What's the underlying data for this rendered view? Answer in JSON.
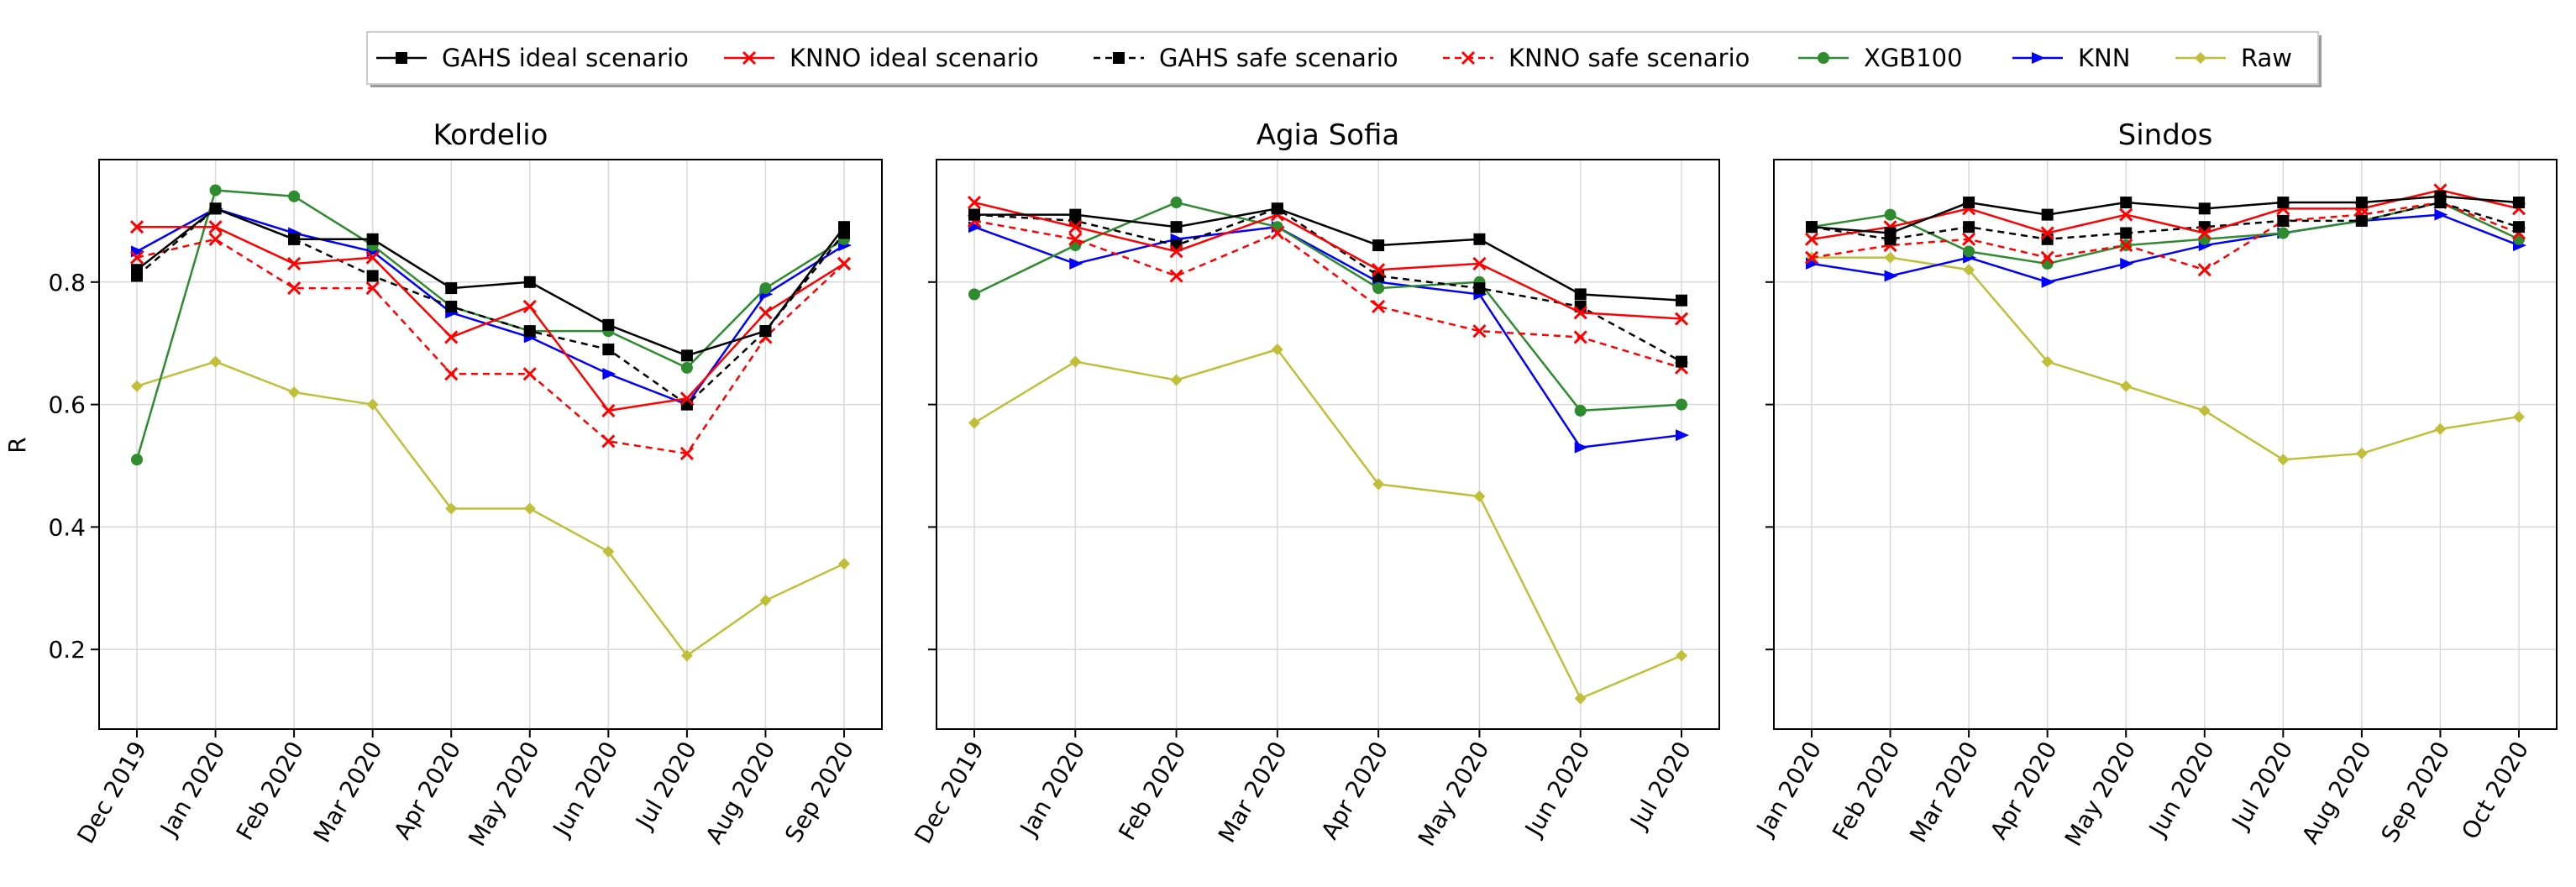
{
  "chart_data": {
    "type": "line",
    "ylabel": "R",
    "ylim": [
      0.07,
      1.0
    ],
    "yticks": [
      0.2,
      0.4,
      0.6,
      0.8
    ],
    "grid": true,
    "legend_position": "top-center",
    "legend": [
      {
        "key": "gahs_ideal",
        "label": "GAHS ideal scenario",
        "color": "#000000",
        "dash": false,
        "marker": "square"
      },
      {
        "key": "knno_ideal",
        "label": "KNNO ideal scenario",
        "color": "#ff0000",
        "dash": false,
        "marker": "x"
      },
      {
        "key": "gahs_safe",
        "label": "GAHS safe scenario",
        "color": "#000000",
        "dash": true,
        "marker": "square"
      },
      {
        "key": "knno_safe",
        "label": "KNNO safe scenario",
        "color": "#ff0000",
        "dash": true,
        "marker": "x"
      },
      {
        "key": "xgb100",
        "label": "XGB100",
        "color": "#2e8b2e",
        "dash": false,
        "marker": "circle"
      },
      {
        "key": "knn",
        "label": "KNN",
        "color": "#0000ff",
        "dash": false,
        "marker": "triangle-right"
      },
      {
        "key": "raw",
        "label": "Raw",
        "color": "#bfbf3a",
        "dash": false,
        "marker": "diamond"
      }
    ],
    "panels": [
      {
        "title": "Kordelio",
        "categories": [
          "Dec 2019",
          "Jan 2020",
          "Feb 2020",
          "Mar 2020",
          "Apr 2020",
          "May 2020",
          "Jun 2020",
          "Jul 2020",
          "Aug 2020",
          "Sep 2020"
        ],
        "series": {
          "gahs_ideal": [
            0.82,
            0.92,
            0.87,
            0.87,
            0.79,
            0.8,
            0.73,
            0.68,
            0.72,
            0.89
          ],
          "knno_ideal": [
            0.89,
            0.89,
            0.83,
            0.84,
            0.71,
            0.76,
            0.59,
            0.61,
            0.75,
            0.83
          ],
          "gahs_safe": [
            0.81,
            0.92,
            0.87,
            0.81,
            0.76,
            0.72,
            0.69,
            0.6,
            0.72,
            0.88
          ],
          "knno_safe": [
            0.84,
            0.87,
            0.79,
            0.79,
            0.65,
            0.65,
            0.54,
            0.52,
            0.71,
            0.83
          ],
          "xgb100": [
            0.51,
            0.95,
            0.94,
            0.86,
            0.76,
            0.72,
            0.72,
            0.66,
            0.79,
            0.87
          ],
          "knn": [
            0.85,
            0.92,
            0.88,
            0.85,
            0.75,
            0.71,
            0.65,
            0.6,
            0.78,
            0.86
          ],
          "raw": [
            0.63,
            0.67,
            0.62,
            0.6,
            0.43,
            0.43,
            0.36,
            0.19,
            0.28,
            0.34
          ]
        }
      },
      {
        "title": "Agia Sofia",
        "categories": [
          "Dec 2019",
          "Jan 2020",
          "Feb 2020",
          "Mar 2020",
          "Apr 2020",
          "May 2020",
          "Jun 2020",
          "Jul 2020"
        ],
        "series": {
          "gahs_ideal": [
            0.91,
            0.91,
            0.89,
            0.92,
            0.86,
            0.87,
            0.78,
            0.77
          ],
          "knno_ideal": [
            0.93,
            0.89,
            0.85,
            0.91,
            0.82,
            0.83,
            0.75,
            0.74
          ],
          "gahs_safe": [
            0.91,
            0.9,
            0.86,
            0.92,
            0.81,
            0.79,
            0.76,
            0.67
          ],
          "knno_safe": [
            0.9,
            0.87,
            0.81,
            0.88,
            0.76,
            0.72,
            0.71,
            0.66
          ],
          "xgb100": [
            0.78,
            0.86,
            0.93,
            0.89,
            0.79,
            0.8,
            0.59,
            0.6
          ],
          "knn": [
            0.89,
            0.83,
            0.87,
            0.89,
            0.8,
            0.78,
            0.53,
            0.55
          ],
          "raw": [
            0.57,
            0.67,
            0.64,
            0.69,
            0.47,
            0.45,
            0.12,
            0.19
          ]
        }
      },
      {
        "title": "Sindos",
        "categories": [
          "Jan 2020",
          "Feb 2020",
          "Mar 2020",
          "Apr 2020",
          "May 2020",
          "Jun 2020",
          "Jul 2020",
          "Aug 2020",
          "Sep 2020",
          "Oct 2020"
        ],
        "series": {
          "gahs_ideal": [
            0.89,
            0.88,
            0.93,
            0.91,
            0.93,
            0.92,
            0.93,
            0.93,
            0.94,
            0.93
          ],
          "knno_ideal": [
            0.87,
            0.89,
            0.92,
            0.88,
            0.91,
            0.88,
            0.92,
            0.92,
            0.95,
            0.92
          ],
          "gahs_safe": [
            0.89,
            0.87,
            0.89,
            0.87,
            0.88,
            0.89,
            0.9,
            0.9,
            0.93,
            0.89
          ],
          "knno_safe": [
            0.84,
            0.86,
            0.87,
            0.84,
            0.86,
            0.82,
            0.9,
            0.91,
            0.93,
            0.88
          ],
          "xgb100": [
            0.89,
            0.91,
            0.85,
            0.83,
            0.86,
            0.87,
            0.88,
            0.9,
            0.93,
            0.87
          ],
          "knn": [
            0.83,
            0.81,
            0.84,
            0.8,
            0.83,
            0.86,
            0.88,
            0.9,
            0.91,
            0.86
          ],
          "raw": [
            0.84,
            0.84,
            0.82,
            0.67,
            0.63,
            0.59,
            0.51,
            0.52,
            0.56,
            0.58
          ]
        }
      }
    ]
  }
}
